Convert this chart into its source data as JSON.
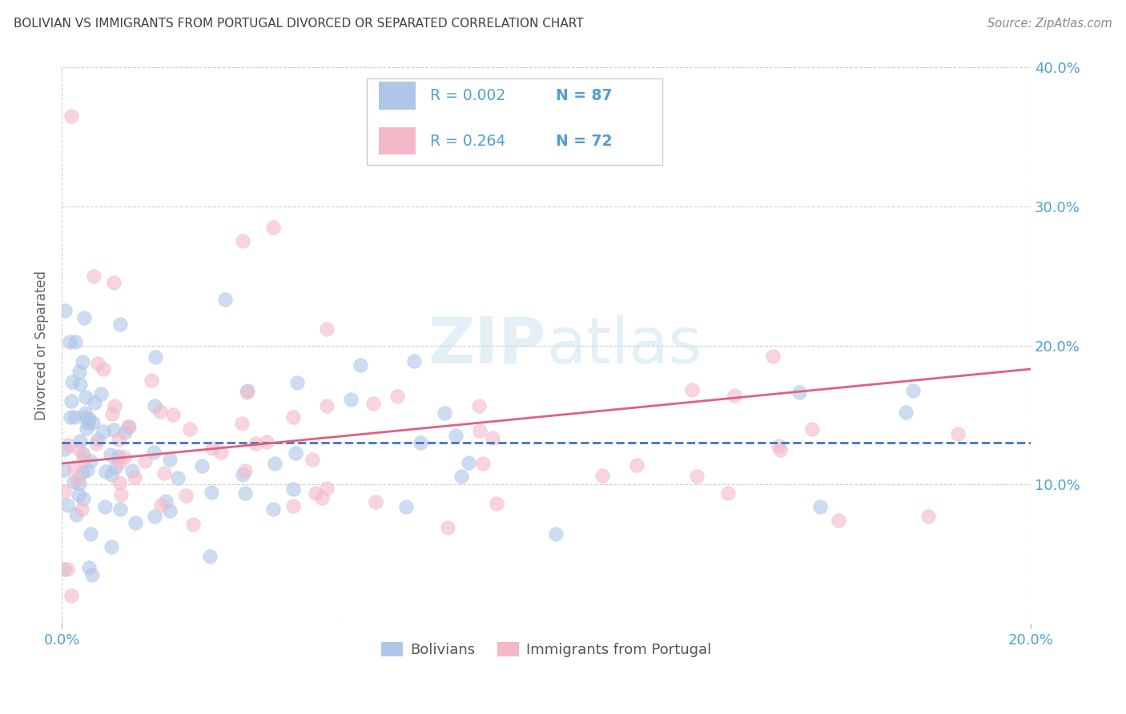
{
  "title": "BOLIVIAN VS IMMIGRANTS FROM PORTUGAL DIVORCED OR SEPARATED CORRELATION CHART",
  "source_text": "Source: ZipAtlas.com",
  "ylabel": "Divorced or Separated",
  "xlim": [
    0.0,
    0.2
  ],
  "ylim": [
    0.0,
    0.4
  ],
  "xticks": [
    0.0,
    0.2
  ],
  "yticks": [
    0.0,
    0.1,
    0.2,
    0.3,
    0.4
  ],
  "ytick_labels": [
    "",
    "10.0%",
    "20.0%",
    "30.0%",
    "40.0%"
  ],
  "xtick_labels": [
    "0.0%",
    "20.0%"
  ],
  "watermark_zip": "ZIP",
  "watermark_atlas": "atlas",
  "bolivians_color": "#aec6e8",
  "portugal_color": "#f4b8c8",
  "bolivians_line_color": "#4472c4",
  "portugal_line_color": "#e06080",
  "background_color": "#ffffff",
  "grid_color": "#c8c8c8",
  "axis_label_color": "#4f9fd4",
  "title_color": "#404040",
  "legend_R1": "R = 0.002",
  "legend_N1": "N = 87",
  "legend_R2": "R = 0.264",
  "legend_N2": "N = 72",
  "label_bolivians": "Bolivians",
  "label_portugal": "Immigrants from Portugal",
  "bolivian_line_y0": 0.13,
  "bolivian_line_y1": 0.13,
  "portugal_line_y0": 0.115,
  "portugal_line_y1": 0.183
}
